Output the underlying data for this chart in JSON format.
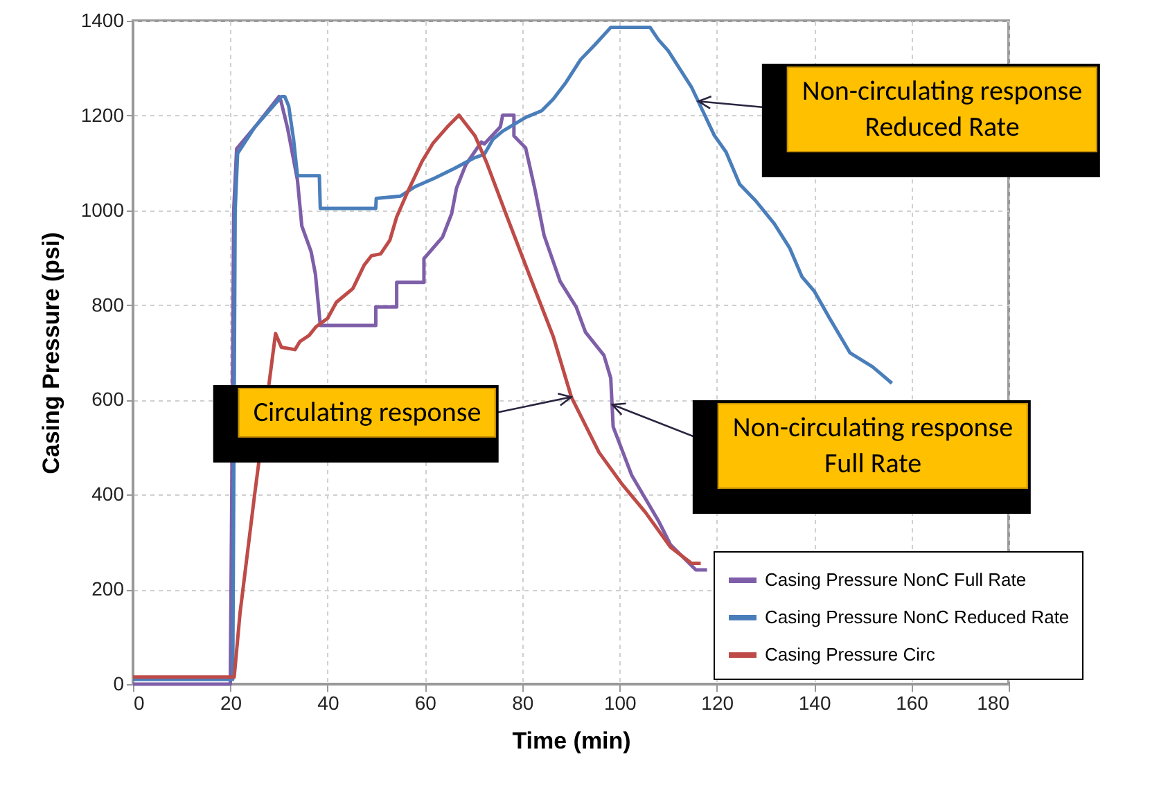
{
  "chart_data": {
    "type": "line",
    "xlabel": "Time (min)",
    "ylabel": "Casing Pressure (psi)",
    "xlim": [
      0,
      180
    ],
    "xticks": [
      0,
      20,
      40,
      60,
      80,
      100,
      120,
      140,
      160,
      180
    ],
    "ylim": [
      0,
      1400
    ],
    "yticks": [
      0,
      200,
      400,
      600,
      800,
      1000,
      1200,
      1400
    ],
    "grid": true,
    "legend": "bottom right",
    "line_style": "solid",
    "marker": "none",
    "series": [
      {
        "name": "Casing Pressure NonC Full Rate",
        "color": "#7e5ea8",
        "x": [
          0,
          20,
          20.3,
          20.7,
          21.3,
          25,
          30,
          30.4,
          31.8,
          33.8,
          34.7,
          36.6,
          37.5,
          38.5,
          49.9,
          49.9,
          54.2,
          54.2,
          59.8,
          59.8,
          63.6,
          65.5,
          66.5,
          68.4,
          71.6,
          72.2,
          75.5,
          76,
          78.3,
          78.3,
          80.7,
          82.6,
          84.5,
          87.8,
          91.1,
          93,
          96.8,
          98.2,
          98.7,
          102.5,
          105.3,
          108.1,
          110.5,
          115.7,
          118
        ],
        "values": [
          0,
          0,
          400,
          1000,
          1130,
          1175,
          1240,
          1231,
          1172,
          1064,
          967,
          913,
          865,
          757,
          757,
          796,
          796,
          848,
          848,
          898,
          943,
          993,
          1047,
          1096,
          1144,
          1140,
          1176,
          1201,
          1201,
          1157,
          1132,
          1045,
          947,
          850,
          796,
          743,
          694,
          646,
          543,
          441,
          392,
          343,
          294,
          241,
          241
        ]
      },
      {
        "name": "Casing Pressure NonC Reduced Rate",
        "color": "#4a7ebb",
        "x": [
          0,
          20.5,
          21,
          21.5,
          25,
          30.5,
          31.2,
          32,
          33,
          33.8,
          38.3,
          38.5,
          49.9,
          50,
          55,
          58,
          62,
          66,
          70,
          72.2,
          74,
          76,
          80.7,
          84,
          86.4,
          89,
          92,
          95,
          98.2,
          106.3,
          108,
          110,
          114.8,
          119.5,
          121.9,
          124.7,
          128,
          131.8,
          135,
          137.5,
          140,
          143.2,
          147.4,
          152,
          156
        ],
        "values": [
          10,
          10,
          1000,
          1120,
          1175,
          1240,
          1240,
          1220,
          1150,
          1073,
          1073,
          1004,
          1004,
          1025,
          1030,
          1050,
          1068,
          1088,
          1110,
          1118,
          1150,
          1167,
          1196,
          1210,
          1235,
          1270,
          1318,
          1350,
          1386,
          1386,
          1360,
          1337,
          1260,
          1158,
          1123,
          1055,
          1020,
          972,
          920,
          860,
          830,
          772,
          699,
          670,
          635
        ]
      },
      {
        "name": "Casing Pressure Circ",
        "color": "#be4b48",
        "x": [
          0,
          20.8,
          22,
          25,
          29.3,
          30.5,
          33.3,
          34.3,
          36.2,
          37.6,
          40,
          41.8,
          45.2,
          47.5,
          49,
          50.9,
          52.8,
          54.2,
          56.5,
          59.4,
          61.7,
          64.6,
          67,
          70.3,
          72.6,
          76.9,
          81.6,
          86.4,
          90.1,
          95.8,
          100.6,
          105.3,
          110.5,
          114.8,
          116.7
        ],
        "values": [
          15,
          15,
          150,
          400,
          740,
          711,
          706,
          723,
          736,
          754,
          772,
          806,
          835,
          884,
          904,
          908,
          937,
          986,
          1040,
          1103,
          1142,
          1176,
          1201,
          1157,
          1103,
          986,
          860,
          733,
          606,
          489,
          421,
          363,
          289,
          255,
          255
        ]
      }
    ],
    "annotations": [
      {
        "text": "Circulating response",
        "x": 90.1,
        "y": 606
      },
      {
        "text": "Non-circulating response\nFull Rate",
        "x": 98.5,
        "y": 590
      },
      {
        "text": "Non-circulating response\nReduced Rate",
        "x": 116.2,
        "y": 1230
      }
    ]
  }
}
